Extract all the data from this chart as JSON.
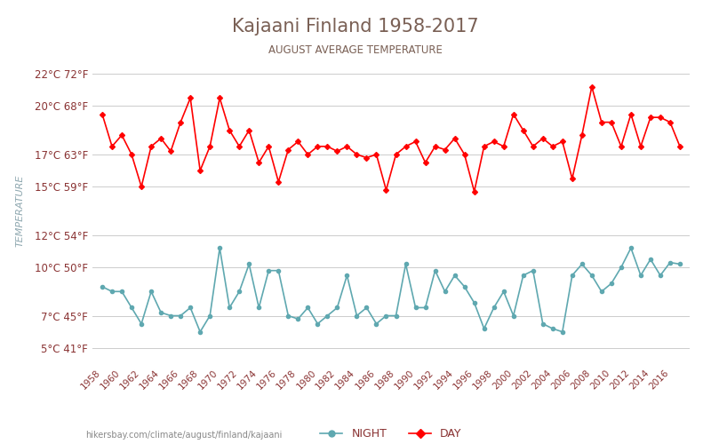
{
  "title": "Kajaani Finland 1958-2017",
  "subtitle": "AUGUST AVERAGE TEMPERATURE",
  "ylabel": "TEMPERATURE",
  "xlabel_url": "hikersbay.com/climate/august/finland/kajaani",
  "years": [
    1958,
    1959,
    1960,
    1961,
    1962,
    1963,
    1964,
    1965,
    1966,
    1967,
    1968,
    1969,
    1970,
    1971,
    1972,
    1973,
    1974,
    1975,
    1976,
    1977,
    1978,
    1979,
    1980,
    1981,
    1982,
    1983,
    1984,
    1985,
    1986,
    1987,
    1988,
    1989,
    1990,
    1991,
    1992,
    1993,
    1994,
    1995,
    1996,
    1997,
    1998,
    1999,
    2000,
    2001,
    2002,
    2003,
    2004,
    2005,
    2006,
    2007,
    2008,
    2009,
    2010,
    2011,
    2012,
    2013,
    2014,
    2015,
    2016,
    2017
  ],
  "day_temps": [
    19.5,
    17.5,
    18.2,
    17.0,
    15.0,
    17.5,
    18.0,
    17.2,
    19.0,
    20.5,
    16.0,
    17.5,
    20.5,
    18.5,
    17.5,
    18.5,
    16.5,
    17.5,
    15.3,
    17.3,
    17.8,
    17.0,
    17.5,
    17.5,
    17.2,
    17.5,
    17.0,
    16.8,
    17.0,
    14.8,
    17.0,
    17.5,
    17.8,
    16.5,
    17.5,
    17.3,
    18.0,
    17.0,
    14.7,
    17.5,
    17.8,
    17.5,
    19.5,
    18.5,
    17.5,
    18.0,
    17.5,
    17.8,
    15.5,
    18.2,
    21.2,
    19.0,
    19.0,
    17.5,
    19.5,
    17.5,
    19.3,
    19.3,
    19.0,
    17.5
  ],
  "night_temps": [
    8.8,
    8.5,
    8.5,
    7.5,
    6.5,
    8.5,
    7.2,
    7.0,
    7.0,
    7.5,
    6.0,
    7.0,
    11.2,
    7.5,
    8.5,
    10.2,
    7.5,
    9.8,
    9.8,
    7.0,
    6.8,
    7.5,
    6.5,
    7.0,
    7.5,
    9.5,
    7.0,
    7.5,
    6.5,
    7.0,
    7.0,
    10.2,
    7.5,
    7.5,
    9.8,
    8.5,
    9.5,
    8.8,
    7.8,
    6.2,
    7.5,
    8.5,
    7.0,
    9.5,
    9.8,
    6.5,
    6.2,
    6.0,
    9.5,
    10.2,
    9.5,
    8.5,
    9.0,
    10.0,
    11.2,
    9.5,
    10.5,
    9.5,
    10.3,
    10.2
  ],
  "day_color": "#ff0000",
  "night_color": "#5fa8b0",
  "title_color": "#7a6055",
  "subtitle_color": "#7a6055",
  "axis_label_color": "#8fa8b0",
  "tick_color": "#8a3333",
  "grid_color": "#cccccc",
  "bg_color": "#ffffff",
  "ylim_min": 4,
  "ylim_max": 23,
  "yticks_c": [
    5,
    7,
    10,
    12,
    15,
    17,
    20,
    22
  ],
  "yticks_f": [
    41,
    45,
    50,
    54,
    59,
    63,
    68,
    72
  ]
}
